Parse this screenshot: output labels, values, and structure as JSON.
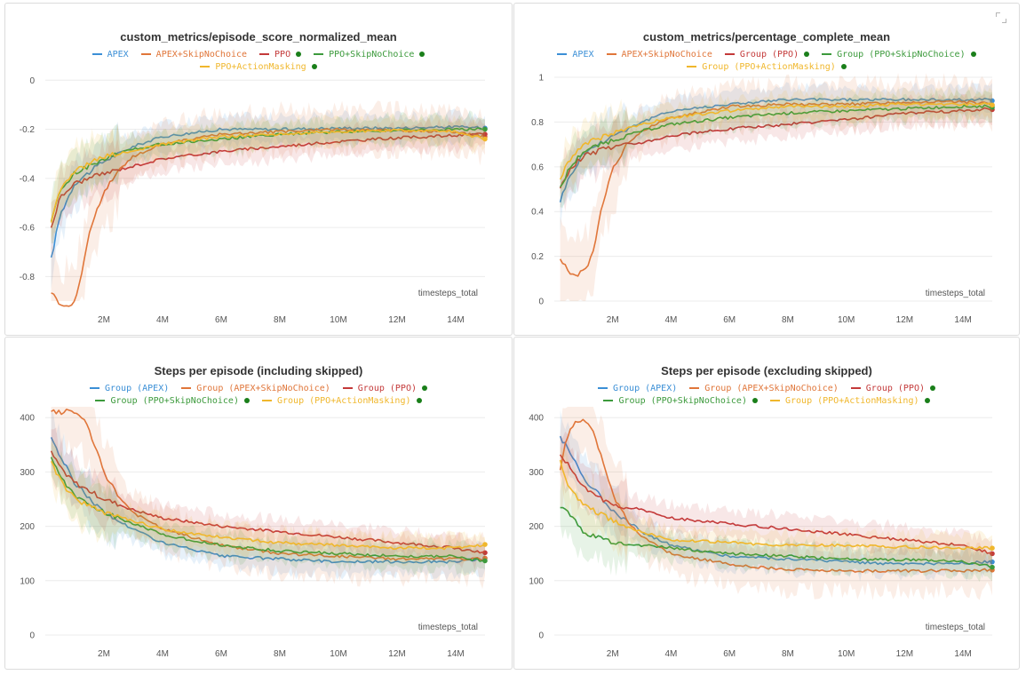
{
  "colors": {
    "apex": "#3b8fd6",
    "skip": "#e0763a",
    "ppo": "#c43a3a",
    "ppo_skip": "#3c9a3c",
    "ppo_mask": "#f0b72c",
    "final_dot": "#1a7f1a"
  },
  "x_label": "timesteps_total",
  "expand_icon": "expand-icon",
  "chart_data": [
    {
      "type": "line",
      "title": "custom_metrics/episode_score_normalized_mean",
      "xlabel": "timesteps_total",
      "ylabel": "",
      "xlim": [
        0,
        15000000
      ],
      "ylim": [
        -0.9,
        0.03
      ],
      "x_ticks": [
        2000000,
        4000000,
        6000000,
        8000000,
        10000000,
        12000000,
        14000000
      ],
      "x_tick_labels": [
        "2M",
        "4M",
        "6M",
        "8M",
        "10M",
        "12M",
        "14M"
      ],
      "y_ticks": [
        0,
        -0.2,
        -0.4,
        -0.6,
        -0.8
      ],
      "y_tick_labels": [
        "0",
        "-0.2",
        "-0.4",
        "-0.6",
        "-0.8"
      ],
      "series": [
        {
          "name": "APEX",
          "color": "#3b8fd6",
          "marker": false,
          "x": [
            0.2,
            0.5,
            1,
            2,
            3,
            4,
            6,
            8,
            10,
            12,
            14,
            15
          ],
          "y": [
            -0.73,
            -0.55,
            -0.42,
            -0.33,
            -0.27,
            -0.23,
            -0.2,
            -0.2,
            -0.195,
            -0.195,
            -0.19,
            -0.195
          ]
        },
        {
          "name": "APEX+SkipNoChoice",
          "color": "#e0763a",
          "marker": false,
          "x": [
            0.2,
            0.5,
            0.8,
            1,
            1.2,
            1.5,
            2,
            2.5,
            3,
            4,
            6,
            8,
            10,
            12,
            14,
            15
          ],
          "y": [
            -0.86,
            -0.91,
            -0.92,
            -0.9,
            -0.82,
            -0.62,
            -0.45,
            -0.37,
            -0.31,
            -0.26,
            -0.22,
            -0.21,
            -0.2,
            -0.205,
            -0.21,
            -0.23
          ]
        },
        {
          "name": "PPO",
          "color": "#c43a3a",
          "marker": true,
          "x": [
            0.2,
            0.5,
            1,
            2,
            3,
            4,
            6,
            8,
            10,
            12,
            14,
            15
          ],
          "y": [
            -0.6,
            -0.48,
            -0.42,
            -0.38,
            -0.35,
            -0.32,
            -0.29,
            -0.27,
            -0.25,
            -0.235,
            -0.225,
            -0.22
          ]
        },
        {
          "name": "PPO+SkipNoChoice",
          "color": "#3c9a3c",
          "marker": true,
          "x": [
            0.2,
            0.5,
            1,
            2,
            3,
            4,
            6,
            8,
            10,
            12,
            14,
            15
          ],
          "y": [
            -0.58,
            -0.45,
            -0.38,
            -0.32,
            -0.28,
            -0.26,
            -0.24,
            -0.22,
            -0.21,
            -0.205,
            -0.2,
            -0.2
          ]
        },
        {
          "name": "PPO+ActionMasking",
          "color": "#f0b72c",
          "marker": true,
          "x": [
            0.2,
            0.5,
            1,
            2,
            3,
            4,
            6,
            8,
            10,
            12,
            14,
            15
          ],
          "y": [
            -0.57,
            -0.44,
            -0.37,
            -0.31,
            -0.29,
            -0.26,
            -0.23,
            -0.22,
            -0.21,
            -0.205,
            -0.21,
            -0.24
          ]
        }
      ]
    },
    {
      "type": "line",
      "title": "custom_metrics/percentage_complete_mean",
      "xlabel": "timesteps_total",
      "ylabel": "",
      "xlim": [
        0,
        15000000
      ],
      "ylim": [
        0,
        1.02
      ],
      "x_ticks": [
        2000000,
        4000000,
        6000000,
        8000000,
        10000000,
        12000000,
        14000000
      ],
      "x_tick_labels": [
        "2M",
        "4M",
        "6M",
        "8M",
        "10M",
        "12M",
        "14M"
      ],
      "y_ticks": [
        0,
        0.2,
        0.4,
        0.6,
        0.8,
        1
      ],
      "y_tick_labels": [
        "0",
        "0.2",
        "0.4",
        "0.6",
        "0.8",
        "1"
      ],
      "series": [
        {
          "name": "APEX",
          "color": "#3b8fd6",
          "marker": false,
          "x": [
            0.2,
            0.5,
            1,
            2,
            3,
            4,
            6,
            8,
            10,
            12,
            14,
            15
          ],
          "y": [
            0.45,
            0.55,
            0.66,
            0.74,
            0.8,
            0.85,
            0.88,
            0.9,
            0.9,
            0.9,
            0.9,
            0.9
          ]
        },
        {
          "name": "APEX+SkipNoChoice",
          "color": "#e0763a",
          "marker": false,
          "x": [
            0.2,
            0.5,
            0.8,
            1,
            1.3,
            1.6,
            2,
            2.5,
            3,
            4,
            6,
            8,
            10,
            12,
            14,
            15
          ],
          "y": [
            0.19,
            0.13,
            0.12,
            0.13,
            0.2,
            0.4,
            0.6,
            0.7,
            0.76,
            0.82,
            0.87,
            0.88,
            0.88,
            0.89,
            0.89,
            0.88
          ]
        },
        {
          "name": "Group (PPO)",
          "color": "#c43a3a",
          "marker": true,
          "x": [
            0.2,
            0.5,
            1,
            2,
            3,
            4,
            6,
            8,
            10,
            12,
            14,
            15
          ],
          "y": [
            0.5,
            0.58,
            0.65,
            0.69,
            0.71,
            0.74,
            0.77,
            0.79,
            0.81,
            0.84,
            0.85,
            0.86
          ]
        },
        {
          "name": "Group (PPO+SkipNoChoice)",
          "color": "#3c9a3c",
          "marker": true,
          "x": [
            0.2,
            0.5,
            1,
            2,
            3,
            4,
            6,
            8,
            10,
            12,
            14,
            15
          ],
          "y": [
            0.5,
            0.59,
            0.67,
            0.72,
            0.76,
            0.79,
            0.82,
            0.84,
            0.85,
            0.86,
            0.87,
            0.87
          ]
        },
        {
          "name": "Group (PPO+ActionMasking)",
          "color": "#f0b72c",
          "marker": true,
          "x": [
            0.2,
            0.5,
            1,
            2,
            3,
            4,
            6,
            8,
            10,
            12,
            14,
            15
          ],
          "y": [
            0.55,
            0.63,
            0.7,
            0.75,
            0.79,
            0.82,
            0.85,
            0.87,
            0.87,
            0.88,
            0.88,
            0.88
          ]
        }
      ]
    },
    {
      "type": "line",
      "title": "Steps per episode (including skipped)",
      "xlabel": "timesteps_total",
      "ylabel": "",
      "xlim": [
        0,
        15000000
      ],
      "ylim": [
        0,
        420
      ],
      "x_ticks": [
        2000000,
        4000000,
        6000000,
        8000000,
        10000000,
        12000000,
        14000000
      ],
      "x_tick_labels": [
        "2M",
        "4M",
        "6M",
        "8M",
        "10M",
        "12M",
        "14M"
      ],
      "y_ticks": [
        0,
        100,
        200,
        300,
        400
      ],
      "y_tick_labels": [
        "0",
        "100",
        "200",
        "300",
        "400"
      ],
      "series": [
        {
          "name": "Group (APEX)",
          "color": "#3b8fd6",
          "marker": false,
          "x": [
            0.2,
            0.5,
            1,
            2,
            3,
            4,
            6,
            8,
            10,
            12,
            14,
            15
          ],
          "y": [
            365,
            330,
            280,
            225,
            195,
            170,
            145,
            140,
            135,
            135,
            135,
            140
          ]
        },
        {
          "name": "Group (APEX+SkipNoChoice)",
          "color": "#e0763a",
          "marker": false,
          "x": [
            0.2,
            0.5,
            0.8,
            1,
            1.3,
            1.6,
            2,
            2.5,
            3,
            4,
            6,
            8,
            10,
            12,
            14,
            15
          ],
          "y": [
            410,
            410,
            411,
            410,
            400,
            360,
            300,
            255,
            225,
            195,
            165,
            150,
            145,
            140,
            140,
            140
          ]
        },
        {
          "name": "Group (PPO)",
          "color": "#c43a3a",
          "marker": true,
          "x": [
            0.2,
            0.5,
            1,
            2,
            3,
            4,
            6,
            8,
            10,
            12,
            14,
            15
          ],
          "y": [
            335,
            310,
            280,
            250,
            230,
            215,
            200,
            190,
            180,
            170,
            160,
            150
          ]
        },
        {
          "name": "Group (PPO+SkipNoChoice)",
          "color": "#3c9a3c",
          "marker": true,
          "x": [
            0.2,
            0.5,
            1,
            2,
            3,
            4,
            6,
            8,
            10,
            12,
            14,
            15
          ],
          "y": [
            330,
            295,
            255,
            225,
            205,
            185,
            165,
            155,
            150,
            145,
            145,
            135
          ]
        },
        {
          "name": "Group (PPO+ActionMasking)",
          "color": "#f0b72c",
          "marker": true,
          "x": [
            0.2,
            0.5,
            1,
            2,
            3,
            4,
            6,
            8,
            10,
            12,
            14,
            15
          ],
          "y": [
            320,
            285,
            250,
            225,
            210,
            195,
            180,
            170,
            165,
            160,
            160,
            165
          ]
        }
      ]
    },
    {
      "type": "line",
      "title": "Steps per episode (excluding skipped)",
      "xlabel": "timesteps_total",
      "ylabel": "",
      "xlim": [
        0,
        15000000
      ],
      "ylim": [
        0,
        420
      ],
      "x_ticks": [
        2000000,
        4000000,
        6000000,
        8000000,
        10000000,
        12000000,
        14000000
      ],
      "x_tick_labels": [
        "2M",
        "4M",
        "6M",
        "8M",
        "10M",
        "12M",
        "14M"
      ],
      "y_ticks": [
        0,
        100,
        200,
        300,
        400
      ],
      "y_tick_labels": [
        "0",
        "100",
        "200",
        "300",
        "400"
      ],
      "series": [
        {
          "name": "Group (APEX)",
          "color": "#3b8fd6",
          "marker": false,
          "x": [
            0.2,
            0.5,
            1,
            2,
            3,
            4,
            6,
            8,
            10,
            12,
            14,
            15
          ],
          "y": [
            365,
            340,
            290,
            230,
            190,
            165,
            145,
            140,
            135,
            130,
            132,
            135
          ]
        },
        {
          "name": "Group (APEX+SkipNoChoice)",
          "color": "#e0763a",
          "marker": false,
          "x": [
            0.2,
            0.4,
            0.7,
            1,
            1.3,
            1.6,
            2,
            2.5,
            3,
            4,
            6,
            8,
            10,
            12,
            14,
            15
          ],
          "y": [
            300,
            360,
            390,
            395,
            380,
            330,
            260,
            210,
            180,
            150,
            130,
            120,
            118,
            118,
            118,
            120
          ]
        },
        {
          "name": "Group (PPO)",
          "color": "#c43a3a",
          "marker": true,
          "x": [
            0.2,
            0.5,
            1,
            2,
            3,
            4,
            6,
            8,
            10,
            12,
            14,
            15
          ],
          "y": [
            335,
            310,
            270,
            240,
            230,
            215,
            205,
            195,
            185,
            175,
            165,
            150
          ]
        },
        {
          "name": "Group (PPO+SkipNoChoice)",
          "color": "#3c9a3c",
          "marker": true,
          "x": [
            0.2,
            0.5,
            1,
            2,
            3,
            4,
            6,
            8,
            10,
            12,
            14,
            15
          ],
          "y": [
            235,
            225,
            190,
            170,
            165,
            160,
            150,
            145,
            140,
            138,
            135,
            125
          ]
        },
        {
          "name": "Group (PPO+ActionMasking)",
          "color": "#f0b72c",
          "marker": true,
          "x": [
            0.2,
            0.5,
            1,
            2,
            3,
            4,
            6,
            8,
            10,
            12,
            14,
            15
          ],
          "y": [
            320,
            270,
            240,
            210,
            190,
            175,
            170,
            165,
            165,
            162,
            160,
            160
          ]
        }
      ]
    }
  ]
}
